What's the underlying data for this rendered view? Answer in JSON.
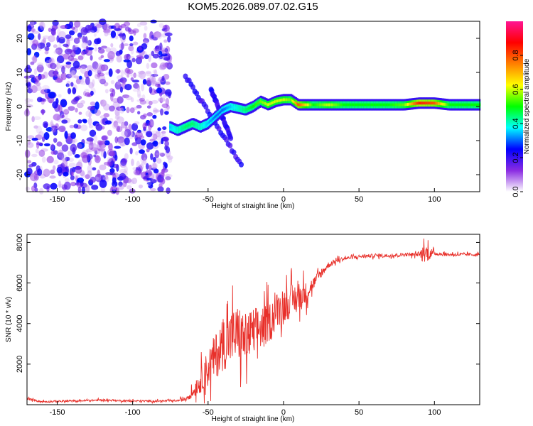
{
  "title": "KOM5.2026.089.07.02.G15",
  "chart_data": [
    {
      "type": "heatmap",
      "xlabel": "Height of straight line (km)",
      "ylabel": "Frequency (Hz)",
      "xlim": [
        -170,
        130
      ],
      "ylim": [
        -25,
        25
      ],
      "xticks": [
        -150,
        -100,
        -50,
        0,
        50,
        100
      ],
      "yticks": [
        -20,
        -10,
        0,
        10,
        20
      ],
      "colorbar": {
        "label": "Normalized spectral amplitude",
        "range": [
          0,
          1
        ],
        "ticks": [
          "0.0",
          "0.2",
          "0.4",
          "0.6",
          "0.8"
        ],
        "colors": [
          "#ffffff",
          "#8a2be2",
          "#0000ff",
          "#00ffff",
          "#00ff00",
          "#ffff00",
          "#ff8000",
          "#ff0000",
          "#ff1493"
        ]
      },
      "noise_region": {
        "x": [
          -170,
          -75
        ],
        "freq_range": [
          -25,
          25
        ],
        "amplitude_range": [
          0.0,
          0.25
        ]
      },
      "signal_ridge": [
        {
          "x": -75,
          "freq": -6,
          "amp": 0.35
        },
        {
          "x": -70,
          "freq": -7,
          "amp": 0.4
        },
        {
          "x": -65,
          "freq": -6,
          "amp": 0.45
        },
        {
          "x": -60,
          "freq": -5,
          "amp": 0.45
        },
        {
          "x": -55,
          "freq": -6,
          "amp": 0.4
        },
        {
          "x": -50,
          "freq": -5,
          "amp": 0.35
        },
        {
          "x": -45,
          "freq": -3,
          "amp": 0.3
        },
        {
          "x": -40,
          "freq": -1,
          "amp": 0.3
        },
        {
          "x": -35,
          "freq": 0,
          "amp": 0.35
        },
        {
          "x": -30,
          "freq": -0.5,
          "amp": 0.4
        },
        {
          "x": -25,
          "freq": -1,
          "amp": 0.45
        },
        {
          "x": -20,
          "freq": 0,
          "amp": 0.5
        },
        {
          "x": -15,
          "freq": 1.5,
          "amp": 0.55
        },
        {
          "x": -10,
          "freq": 0.5,
          "amp": 0.6
        },
        {
          "x": -5,
          "freq": 1.5,
          "amp": 0.6
        },
        {
          "x": 0,
          "freq": 2,
          "amp": 0.6
        },
        {
          "x": 5,
          "freq": 2,
          "amp": 0.55
        },
        {
          "x": 10,
          "freq": 0.5,
          "amp": 0.8
        },
        {
          "x": 20,
          "freq": 0.5,
          "amp": 0.5
        },
        {
          "x": 30,
          "freq": 0.5,
          "amp": 0.6
        },
        {
          "x": 40,
          "freq": 0.5,
          "amp": 0.5
        },
        {
          "x": 50,
          "freq": 0.5,
          "amp": 0.5
        },
        {
          "x": 60,
          "freq": 0.5,
          "amp": 0.5
        },
        {
          "x": 70,
          "freq": 0.5,
          "amp": 0.5
        },
        {
          "x": 80,
          "freq": 0.5,
          "amp": 0.55
        },
        {
          "x": 90,
          "freq": 1,
          "amp": 0.85
        },
        {
          "x": 100,
          "freq": 1,
          "amp": 0.8
        },
        {
          "x": 110,
          "freq": 0.5,
          "amp": 0.5
        },
        {
          "x": 120,
          "freq": 0.5,
          "amp": 0.5
        },
        {
          "x": 130,
          "freq": 0.5,
          "amp": 0.5
        }
      ],
      "diagonal_branches": [
        {
          "from": [
            -65,
            9
          ],
          "to": [
            -28,
            -17
          ]
        },
        {
          "from": [
            -48,
            5
          ],
          "to": [
            -35,
            -9
          ]
        }
      ]
    },
    {
      "type": "line",
      "xlabel": "Height of straight line (km)",
      "ylabel": "SNR (10 * v/v)",
      "xlim": [
        -170,
        130
      ],
      "ylim": [
        0,
        8400
      ],
      "xticks": [
        -150,
        -100,
        -50,
        0,
        50,
        100
      ],
      "yticks": [
        2000,
        4000,
        6000,
        8000
      ],
      "color": "#e8302a",
      "points": [
        [
          -170,
          300
        ],
        [
          -160,
          150
        ],
        [
          -140,
          180
        ],
        [
          -120,
          230
        ],
        [
          -100,
          180
        ],
        [
          -80,
          180
        ],
        [
          -70,
          200
        ],
        [
          -65,
          300
        ],
        [
          -60,
          600
        ],
        [
          -55,
          1200
        ],
        [
          -50,
          1800
        ],
        [
          -45,
          2400
        ],
        [
          -40,
          3000
        ],
        [
          -35,
          3300
        ],
        [
          -30,
          3500
        ],
        [
          -25,
          3200
        ],
        [
          -20,
          3600
        ],
        [
          -15,
          3800
        ],
        [
          -10,
          4000
        ],
        [
          -5,
          4600
        ],
        [
          0,
          4900
        ],
        [
          5,
          5100
        ],
        [
          10,
          5300
        ],
        [
          15,
          5500
        ],
        [
          20,
          6000
        ],
        [
          25,
          6500
        ],
        [
          30,
          6900
        ],
        [
          35,
          7100
        ],
        [
          40,
          7200
        ],
        [
          50,
          7300
        ],
        [
          60,
          7350
        ],
        [
          70,
          7350
        ],
        [
          80,
          7400
        ],
        [
          90,
          7400
        ],
        [
          95,
          7500
        ],
        [
          100,
          7450
        ],
        [
          110,
          7400
        ],
        [
          120,
          7400
        ],
        [
          130,
          7400
        ]
      ],
      "noise_amplitude": [
        [
          -170,
          80
        ],
        [
          -70,
          80
        ],
        [
          -60,
          400
        ],
        [
          -50,
          1600
        ],
        [
          -40,
          2200
        ],
        [
          -30,
          2400
        ],
        [
          -20,
          2000
        ],
        [
          -10,
          1600
        ],
        [
          0,
          1400
        ],
        [
          10,
          1300
        ],
        [
          20,
          500
        ],
        [
          30,
          250
        ],
        [
          40,
          150
        ],
        [
          90,
          150
        ],
        [
          92,
          700
        ],
        [
          96,
          700
        ],
        [
          100,
          150
        ],
        [
          130,
          120
        ]
      ]
    }
  ]
}
